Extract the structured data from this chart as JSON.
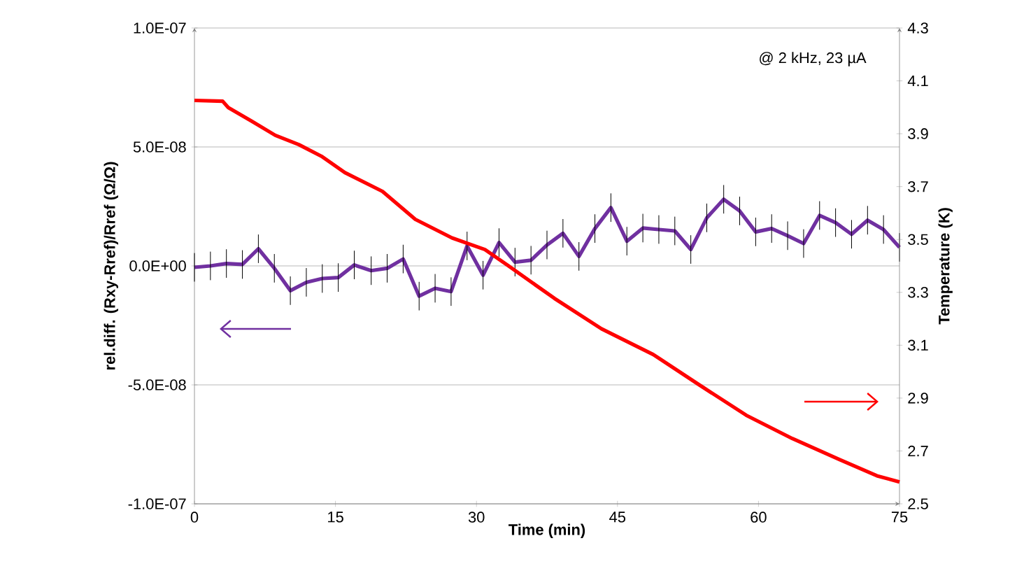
{
  "chart_data": {
    "type": "line",
    "xlabel": "Time (min)",
    "ylabel": "rel.diff.  (Rxy-Rref)/Rref (Ω/Ω)",
    "y2label": "Temperature (K)",
    "annotations": [
      "@ 2 kHz, 23 µA"
    ],
    "xlim": [
      0,
      75
    ],
    "xticks": [
      0,
      15,
      30,
      45,
      60,
      75
    ],
    "ylim": [
      -1e-07,
      1e-07
    ],
    "yticks": [
      {
        "value": -1e-07,
        "label": "-1.0E-07"
      },
      {
        "value": -5e-08,
        "label": "-5.0E-08"
      },
      {
        "value": 0,
        "label": "0.0E+00"
      },
      {
        "value": 5e-08,
        "label": "5.0E-08"
      },
      {
        "value": 1e-07,
        "label": "1.0E-07"
      }
    ],
    "y2lim": [
      2.5,
      4.3
    ],
    "y2ticks": [
      2.5,
      2.7,
      2.9,
      3.1,
      3.3,
      3.5,
      3.7,
      3.9,
      4.1,
      4.3
    ],
    "grid": "y",
    "series": [
      {
        "color": "#7030a0",
        "x": [
          0,
          1.7,
          3.4,
          5.1,
          6.8,
          8.5,
          10.2,
          11.9,
          13.6,
          15.3,
          17.0,
          18.8,
          20.5,
          22.2,
          23.9,
          25.6,
          27.3,
          29.0,
          30.7,
          32.4,
          34.1,
          35.8,
          37.5,
          39.2,
          40.9,
          42.6,
          44.3,
          46.0,
          47.7,
          49.4,
          51.1,
          52.8,
          54.5,
          56.3,
          58.0,
          59.7,
          61.4,
          63.1,
          64.8,
          66.5,
          68.2,
          69.9,
          71.6,
          73.3,
          75.0
        ],
        "values": [
          -6e-10,
          0,
          1e-09,
          6e-10,
          7.2e-09,
          -1e-09,
          -1.04e-08,
          -6.9e-09,
          -5.3e-09,
          -4.9e-09,
          4e-10,
          -2e-09,
          -1e-09,
          2.9e-09,
          -1.27e-08,
          -9.4e-09,
          -1.08e-08,
          8.4e-09,
          -3.9e-09,
          9.8e-09,
          1.6e-09,
          2.4e-09,
          8.8e-09,
          1.37e-08,
          4e-09,
          1.57e-08,
          2.45e-08,
          1.04e-08,
          1.59e-08,
          1.53e-08,
          1.47e-08,
          6.9e-09,
          2.02e-08,
          2.8e-08,
          2.31e-08,
          1.43e-08,
          1.57e-08,
          1.27e-08,
          9.4e-09,
          2.12e-08,
          1.82e-08,
          1.33e-08,
          1.92e-08,
          1.53e-08,
          7.8e-09
        ],
        "errors": [
          6e-09,
          6e-09,
          6e-09,
          6e-09,
          6e-09,
          6e-09,
          6e-09,
          6e-09,
          6e-09,
          6e-09,
          6e-09,
          6e-09,
          6e-09,
          6e-09,
          6e-09,
          6e-09,
          6e-09,
          6e-09,
          6e-09,
          6e-09,
          6e-09,
          6e-09,
          6e-09,
          6e-09,
          6e-09,
          6e-09,
          6e-09,
          6e-09,
          6e-09,
          6e-09,
          6e-09,
          6e-09,
          6e-09,
          6e-09,
          6e-09,
          6e-09,
          6e-09,
          6e-09,
          6e-09,
          6e-09,
          6e-09,
          6e-09,
          6e-09,
          6e-09,
          6e-09
        ]
      },
      {
        "color": "#ff0000",
        "axis": "y2",
        "x": [
          0,
          3.0,
          3.6,
          6.1,
          8.6,
          11.1,
          13.5,
          16.0,
          20.0,
          23.5,
          27.4,
          30.9,
          33.4,
          38.3,
          43.3,
          48.8,
          53.7,
          58.7,
          63.6,
          68.6,
          72.6,
          75.0
        ],
        "values": [
          4.026,
          4.023,
          3.999,
          3.947,
          3.894,
          3.859,
          3.815,
          3.753,
          3.682,
          3.576,
          3.506,
          3.462,
          3.4,
          3.277,
          3.162,
          3.065,
          2.95,
          2.835,
          2.747,
          2.668,
          2.606,
          2.583
        ]
      }
    ]
  }
}
